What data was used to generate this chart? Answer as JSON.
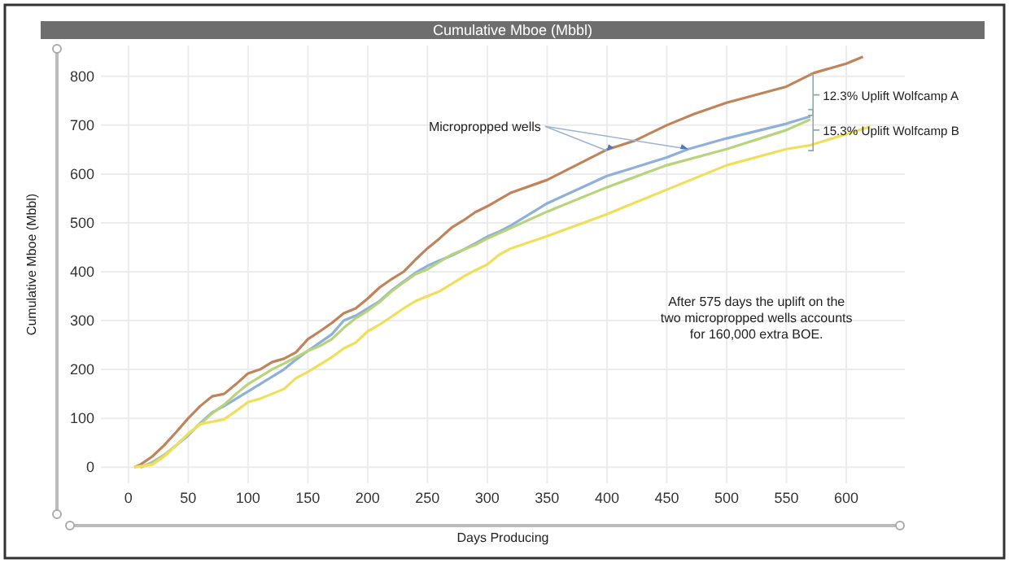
{
  "chart_data": {
    "type": "line",
    "title": "Cumulative Mboe (Mbbl)",
    "xlabel": "Days Producing",
    "ylabel": "Cumulative Mboe (Mbbl)",
    "xlim": [
      -23,
      649
    ],
    "ylim": [
      -33,
      863
    ],
    "xticks": [
      0,
      50,
      100,
      150,
      200,
      250,
      300,
      350,
      400,
      450,
      500,
      550,
      600
    ],
    "yticks": [
      0,
      100,
      200,
      300,
      400,
      500,
      600,
      700,
      800
    ],
    "grid": true,
    "marker": "none",
    "line_style": "solid",
    "series": [
      {
        "color": "#c0845a",
        "x": [
          5,
          10,
          20,
          30,
          40,
          50,
          60,
          70,
          80,
          90,
          100,
          110,
          120,
          130,
          140,
          150,
          160,
          170,
          180,
          190,
          200,
          210,
          220,
          230,
          240,
          250,
          260,
          270,
          280,
          290,
          300,
          310,
          320,
          350,
          400,
          423,
          450,
          473,
          500,
          550,
          573,
          600,
          614
        ],
        "values": [
          0,
          5,
          22,
          45,
          72,
          100,
          125,
          145,
          150,
          170,
          192,
          200,
          215,
          222,
          235,
          262,
          278,
          295,
          315,
          325,
          345,
          368,
          385,
          400,
          425,
          448,
          468,
          490,
          505,
          522,
          534,
          548,
          562,
          588,
          650,
          668,
          700,
          723,
          746,
          779,
          807,
          826,
          840
        ]
      },
      {
        "color": "#8fb0d8",
        "x": [
          10,
          20,
          30,
          40,
          50,
          60,
          70,
          80,
          90,
          100,
          110,
          120,
          130,
          140,
          150,
          160,
          170,
          180,
          190,
          200,
          210,
          220,
          230,
          240,
          250,
          260,
          270,
          280,
          290,
          300,
          310,
          320,
          350,
          400,
          450,
          468,
          500,
          550,
          570
        ],
        "values": [
          0,
          10,
          25,
          45,
          65,
          90,
          112,
          125,
          140,
          155,
          170,
          185,
          200,
          220,
          238,
          255,
          272,
          300,
          310,
          325,
          340,
          362,
          380,
          398,
          412,
          423,
          433,
          445,
          458,
          472,
          482,
          495,
          540,
          596,
          634,
          651,
          673,
          703,
          718
        ]
      },
      {
        "color": "#b8d47a",
        "x": [
          10,
          20,
          30,
          40,
          50,
          60,
          70,
          80,
          90,
          100,
          110,
          120,
          130,
          140,
          150,
          160,
          170,
          180,
          190,
          200,
          210,
          220,
          230,
          240,
          250,
          260,
          270,
          280,
          290,
          300,
          350,
          400,
          450,
          500,
          550,
          570
        ],
        "values": [
          0,
          8,
          25,
          45,
          68,
          88,
          110,
          128,
          150,
          170,
          185,
          200,
          212,
          225,
          238,
          248,
          262,
          285,
          305,
          320,
          338,
          360,
          378,
          395,
          405,
          420,
          435,
          445,
          455,
          468,
          523,
          573,
          618,
          651,
          690,
          712
        ]
      },
      {
        "color": "#efdf5a",
        "x": [
          5,
          20,
          30,
          40,
          50,
          60,
          70,
          80,
          90,
          100,
          110,
          120,
          130,
          140,
          150,
          160,
          170,
          180,
          190,
          200,
          210,
          220,
          230,
          240,
          250,
          260,
          270,
          280,
          290,
          300,
          310,
          320,
          350,
          400,
          450,
          500,
          550,
          570,
          620
        ],
        "values": [
          0,
          5,
          22,
          45,
          68,
          88,
          93,
          98,
          115,
          133,
          140,
          150,
          160,
          182,
          195,
          210,
          225,
          243,
          255,
          278,
          292,
          308,
          325,
          340,
          350,
          360,
          375,
          390,
          403,
          415,
          435,
          448,
          473,
          518,
          568,
          618,
          651,
          659,
          697
        ]
      }
    ],
    "annotations": [
      {
        "text": "Micropropped wells",
        "x": 468,
        "y": 651
      },
      "12.3% Uplift Wolfcamp A",
      "15.3% Uplift Wolfcamp B",
      "After 575 days the uplift on the two micropropped wells accounts for 160,000 extra BOE."
    ]
  }
}
